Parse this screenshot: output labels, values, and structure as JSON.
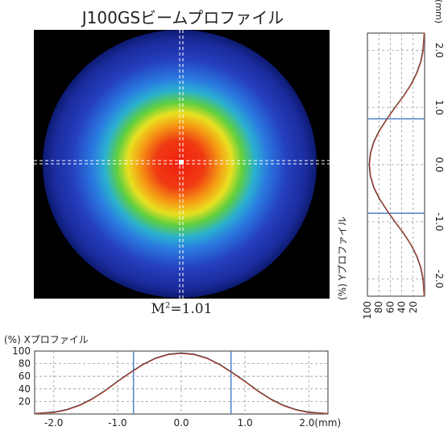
{
  "title": "J100GSビームプロファイル",
  "m2_label": "M",
  "m2_sup": "2",
  "m2_value": "=1.01",
  "colors": {
    "background": "#000000",
    "beam_core": "#e8281a",
    "beam_outer": "#1a2a9a",
    "marker": "#4a86c4",
    "curve_measured": "#222222",
    "curve_fit": "#e06050",
    "grid": "#999999"
  },
  "chart_data": [
    {
      "type": "line",
      "name": "x-profile",
      "ylabel": "(%) Xプロファイル",
      "xlabel": "",
      "x_unit": "(mm)",
      "xlim": [
        -2.3,
        2.3
      ],
      "ylim": [
        0,
        100
      ],
      "x_ticks": [
        "-2.0",
        "-1.0",
        "0.0",
        "1.0",
        "2.0(mm)"
      ],
      "x_tick_values": [
        -2.0,
        -1.0,
        0.0,
        1.0,
        2.0
      ],
      "y_ticks": [
        "100",
        "80",
        "60",
        "40",
        "20"
      ],
      "y_tick_values": [
        100,
        80,
        60,
        40,
        20
      ],
      "markers": [
        -0.75,
        0.78
      ],
      "series": [
        {
          "x": [
            -2.3,
            -2.0,
            -1.8,
            -1.6,
            -1.4,
            -1.2,
            -1.0,
            -0.8,
            -0.6,
            -0.4,
            -0.2,
            0.0,
            0.2,
            0.4,
            0.6,
            0.8,
            1.0,
            1.2,
            1.4,
            1.6,
            1.8,
            2.0,
            2.3
          ],
          "values": [
            1,
            3,
            7,
            14,
            24,
            37,
            52,
            66,
            79,
            89,
            95,
            97,
            95,
            89,
            79,
            66,
            52,
            37,
            24,
            14,
            7,
            3,
            1
          ]
        },
        {
          "x": [
            -2.3,
            -2.0,
            -1.8,
            -1.6,
            -1.4,
            -1.2,
            -1.0,
            -0.8,
            -0.6,
            -0.4,
            -0.2,
            0.0,
            0.2,
            0.4,
            0.6,
            0.8,
            1.0,
            1.2,
            1.4,
            1.6,
            1.8,
            2.0,
            2.3
          ],
          "values": [
            1,
            2,
            6,
            13,
            23,
            36,
            51,
            65,
            78,
            88,
            94,
            96,
            94,
            88,
            78,
            65,
            51,
            36,
            23,
            13,
            6,
            2,
            1
          ]
        }
      ]
    },
    {
      "type": "line",
      "name": "y-profile",
      "ylabel": "(%) Yプロファイル",
      "x_unit": "(mm)",
      "xlim": [
        -2.3,
        2.3
      ],
      "ylim": [
        0,
        100
      ],
      "x_ticks": [
        "-2.0",
        "-1.0",
        "0.0",
        "1.0",
        "2.0"
      ],
      "x_tick_values": [
        -2.0,
        -1.0,
        0.0,
        1.0,
        2.0
      ],
      "y_ticks": [
        "100",
        "80",
        "60",
        "40",
        "20"
      ],
      "y_tick_values": [
        100,
        80,
        60,
        40,
        20
      ],
      "markers": [
        -0.85,
        0.8
      ],
      "series": [
        {
          "x": [
            -2.3,
            -2.0,
            -1.8,
            -1.6,
            -1.4,
            -1.2,
            -1.0,
            -0.8,
            -0.6,
            -0.4,
            -0.2,
            0.0,
            0.2,
            0.4,
            0.6,
            0.8,
            1.0,
            1.2,
            1.4,
            1.6,
            1.8,
            2.0,
            2.3
          ],
          "values": [
            1,
            3,
            7,
            14,
            24,
            37,
            52,
            66,
            79,
            89,
            95,
            97,
            95,
            89,
            79,
            66,
            52,
            37,
            24,
            14,
            7,
            3,
            1
          ]
        },
        {
          "x": [
            -2.3,
            -2.0,
            -1.8,
            -1.6,
            -1.4,
            -1.2,
            -1.0,
            -0.8,
            -0.6,
            -0.4,
            -0.2,
            0.0,
            0.2,
            0.4,
            0.6,
            0.8,
            1.0,
            1.2,
            1.4,
            1.6,
            1.8,
            2.0,
            2.3
          ],
          "values": [
            1,
            2,
            6,
            13,
            23,
            36,
            51,
            65,
            78,
            88,
            94,
            96,
            94,
            88,
            78,
            65,
            51,
            36,
            23,
            13,
            6,
            2,
            1
          ]
        }
      ]
    }
  ]
}
